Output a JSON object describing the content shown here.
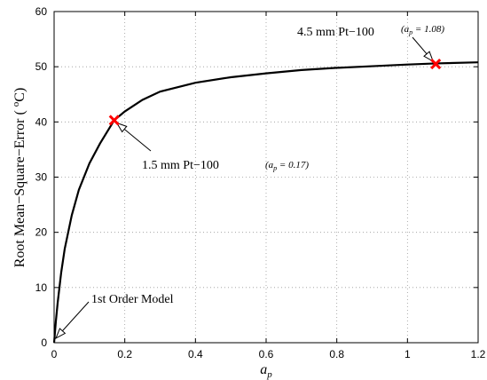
{
  "chart_data": {
    "type": "line",
    "title": "",
    "xlabel": "a_p",
    "ylabel": "Root Mean−Square−Error ( °C)",
    "xlim": [
      0,
      1.2
    ],
    "ylim": [
      0,
      60
    ],
    "xticks": [
      "0",
      "0.2",
      "0.4",
      "0.6",
      "0.8",
      "1",
      "1.2"
    ],
    "yticks": [
      "0",
      "10",
      "20",
      "30",
      "40",
      "50",
      "60"
    ],
    "grid": true,
    "series": [
      {
        "x": [
          0,
          0.005,
          0.01,
          0.02,
          0.03,
          0.05,
          0.07,
          0.1,
          0.13,
          0.17,
          0.2,
          0.25,
          0.3,
          0.4,
          0.5,
          0.6,
          0.7,
          0.8,
          0.9,
          1.0,
          1.08,
          1.2
        ],
        "y": [
          0,
          3.9,
          7.2,
          12.7,
          17.0,
          23.1,
          27.7,
          32.5,
          36.1,
          40.3,
          41.9,
          44.0,
          45.5,
          47.1,
          48.1,
          48.8,
          49.4,
          49.8,
          50.1,
          50.4,
          50.6,
          50.8
        ],
        "color": "#000000"
      }
    ],
    "markers": [
      {
        "x": 0.17,
        "y": 40.3,
        "color": "#ff0000"
      },
      {
        "x": 1.08,
        "y": 50.5,
        "color": "#ff0000"
      }
    ],
    "annotations": [
      {
        "text": "4.5 mm Pt−100",
        "param": "(a_p = 1.08)",
        "arrow_to": [
          1.08,
          50.5
        ]
      },
      {
        "text": "1.5 mm Pt−100",
        "param": "(a_p = 0.17)",
        "arrow_to": [
          0.17,
          40.3
        ]
      },
      {
        "text": "1st Order Model",
        "param": "",
        "arrow_to": [
          0,
          0.5
        ]
      }
    ]
  }
}
